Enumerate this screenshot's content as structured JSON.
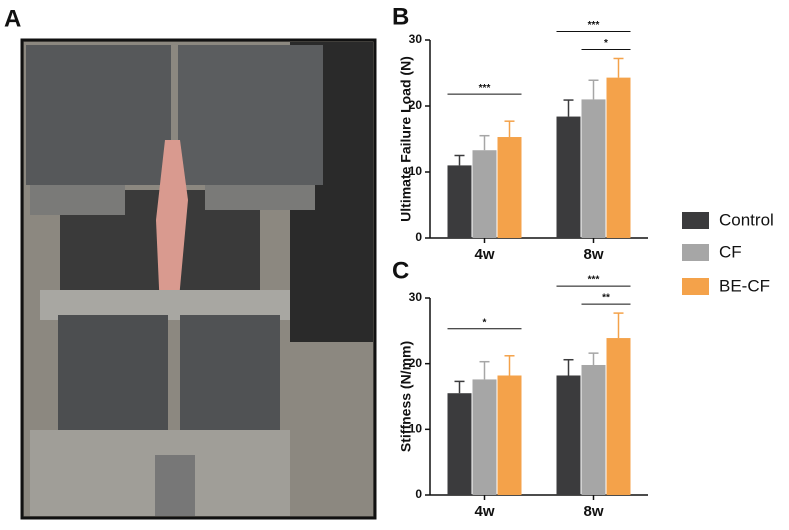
{
  "photo": {
    "label": "A"
  },
  "chart_data": [
    {
      "type": "bar",
      "label": "B",
      "y_label": "Ultimate Failure Load (N)",
      "categories": [
        "4w",
        "8w"
      ],
      "series": [
        {
          "name": "Control",
          "color": "#3b3b3d",
          "values": [
            11,
            18.4
          ],
          "errors": [
            1.5,
            2.5
          ]
        },
        {
          "name": "CF",
          "color": "#a6a6a6",
          "values": [
            13.3,
            21
          ],
          "errors": [
            2.2,
            2.9
          ]
        },
        {
          "name": "BE-CF",
          "color": "#f4a24a",
          "values": [
            15.3,
            24.3
          ],
          "errors": [
            2.4,
            2.9
          ]
        }
      ],
      "ylim": [
        0,
        30
      ],
      "yticks": [
        0,
        10,
        20,
        30
      ],
      "annotations": [
        {
          "text": "***",
          "category": 0,
          "from": 0,
          "to": 2
        },
        {
          "text": "***",
          "category": 1,
          "from": 0,
          "to": 2
        },
        {
          "text": "*",
          "category": 1,
          "from": 1,
          "to": 2
        }
      ]
    },
    {
      "type": "bar",
      "label": "C",
      "y_label": "Stiffness (N/mm)",
      "categories": [
        "4w",
        "8w"
      ],
      "series": [
        {
          "color": "#3b3b3d",
          "values": [
            15.5,
            18.2
          ],
          "errors": [
            1.8,
            2.4
          ]
        },
        {
          "color": "#a6a6a6",
          "values": [
            17.6,
            19.8
          ],
          "errors": [
            2.7,
            1.8
          ]
        },
        {
          "color": "#f4a24a",
          "values": [
            18.2,
            23.9
          ],
          "errors": [
            3.0,
            3.8
          ]
        }
      ],
      "ylim": [
        0,
        30
      ],
      "yticks": [
        0,
        10,
        20,
        30
      ],
      "annotations": [
        {
          "text": "*",
          "category": 0,
          "from": 0,
          "to": 2
        },
        {
          "text": "***",
          "category": 1,
          "from": 0,
          "to": 2
        },
        {
          "text": "**",
          "category": 1,
          "from": 1,
          "to": 2
        }
      ]
    }
  ]
}
